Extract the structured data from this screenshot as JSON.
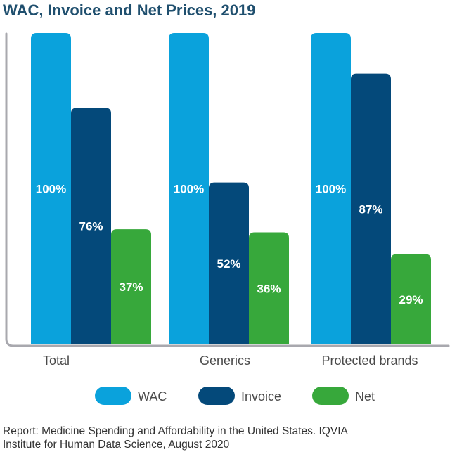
{
  "title": "WAC, Invoice and Net Prices, 2019",
  "source_lines": [
    "Report: Medicine Spending and Affordability in the United States. IQVIA",
    "Institute for Human Data Science, August 2020"
  ],
  "colors": {
    "WAC": "#0aa2dc",
    "Invoice": "#04497a",
    "Net": "#37a83b",
    "axis": "#a8a8ae"
  },
  "chart_data": {
    "type": "bar",
    "title": "WAC, Invoice and Net Prices, 2019",
    "xlabel": "",
    "ylabel": "",
    "ylim": [
      0,
      100
    ],
    "grid": false,
    "legend": "bottom",
    "categories": [
      "Total",
      "Generics",
      "Protected brands"
    ],
    "series": [
      {
        "name": "WAC",
        "values": [
          100,
          100,
          100
        ],
        "labels": [
          "100%",
          "100%",
          "100%"
        ]
      },
      {
        "name": "Invoice",
        "values": [
          76,
          52,
          87
        ],
        "labels": [
          "76%",
          "52%",
          "87%"
        ]
      },
      {
        "name": "Net",
        "values": [
          37,
          36,
          29
        ],
        "labels": [
          "37%",
          "36%",
          "29%"
        ]
      }
    ]
  }
}
